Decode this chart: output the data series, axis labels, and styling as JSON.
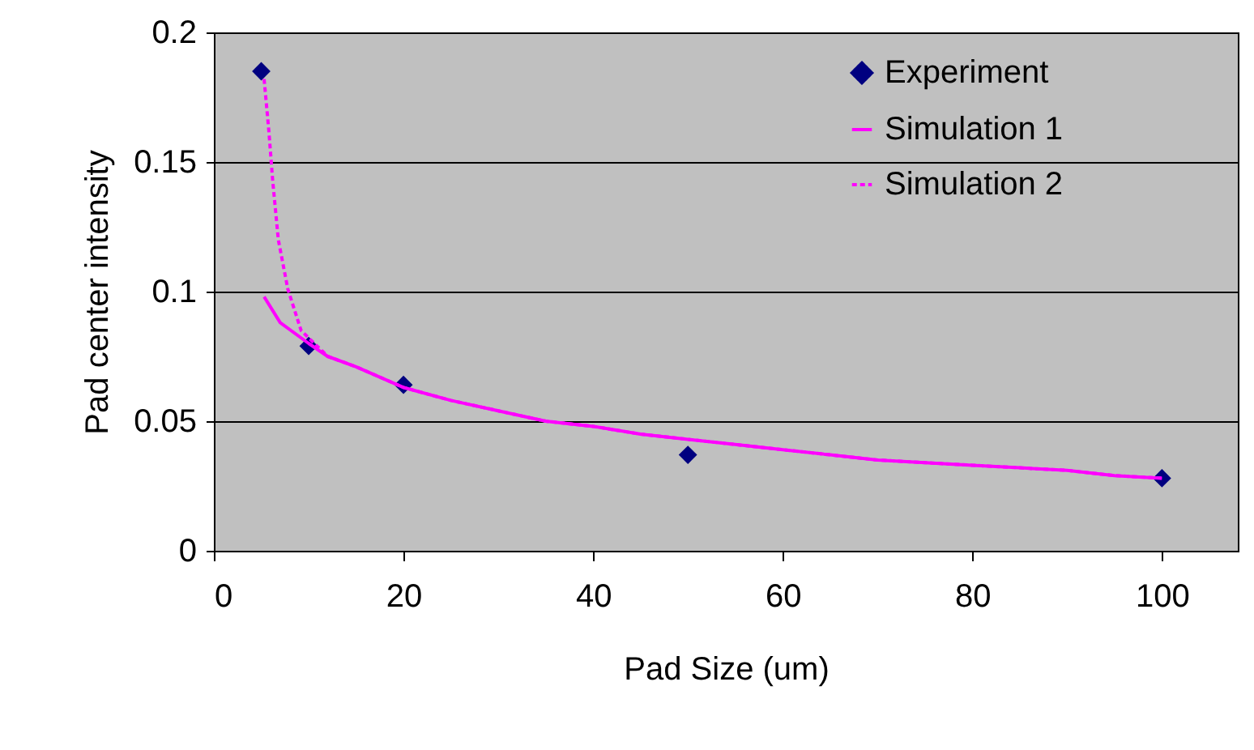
{
  "chart_data": {
    "type": "line",
    "xlabel": "Pad Size (um)",
    "ylabel": "Pad center intensity",
    "xlim": [
      0,
      108
    ],
    "xticks": [
      0,
      20,
      40,
      60,
      80,
      100
    ],
    "ylim": [
      0,
      0.2
    ],
    "yticks": [
      0,
      0.05,
      0.1,
      0.15,
      0.2
    ],
    "grid": "y",
    "legend": "top right",
    "series": [
      {
        "name": "Experiment",
        "type": "scatter",
        "marker": "diamond",
        "color": "#000080",
        "x": [
          5,
          10,
          20,
          50,
          100
        ],
        "values": [
          0.185,
          0.079,
          0.064,
          0.037,
          0.028
        ]
      },
      {
        "name": "Simulation 1",
        "line_style": "solid",
        "color": "#ff00ff",
        "x": [
          5.3,
          7,
          10,
          12,
          15,
          20,
          25,
          30,
          35,
          40,
          45,
          50,
          55,
          60,
          65,
          70,
          75,
          80,
          85,
          90,
          95,
          100
        ],
        "values": [
          0.098,
          0.088,
          0.08,
          0.075,
          0.071,
          0.063,
          0.058,
          0.054,
          0.05,
          0.048,
          0.045,
          0.043,
          0.041,
          0.039,
          0.037,
          0.035,
          0.034,
          0.033,
          0.032,
          0.031,
          0.029,
          0.028
        ]
      },
      {
        "name": "Simulation 2",
        "line_style": "dotted",
        "color": "#ff00ff",
        "x": [
          5.3,
          5.8,
          6.2,
          6.8,
          7.8,
          9.2,
          12,
          15,
          20,
          25,
          30,
          35,
          40,
          45,
          50,
          55,
          60,
          65,
          70,
          75,
          80,
          85,
          90,
          95,
          100
        ],
        "values": [
          0.182,
          0.162,
          0.143,
          0.12,
          0.101,
          0.085,
          0.075,
          0.071,
          0.063,
          0.058,
          0.054,
          0.05,
          0.048,
          0.045,
          0.043,
          0.041,
          0.039,
          0.037,
          0.035,
          0.034,
          0.033,
          0.032,
          0.031,
          0.029,
          0.028
        ]
      }
    ]
  }
}
